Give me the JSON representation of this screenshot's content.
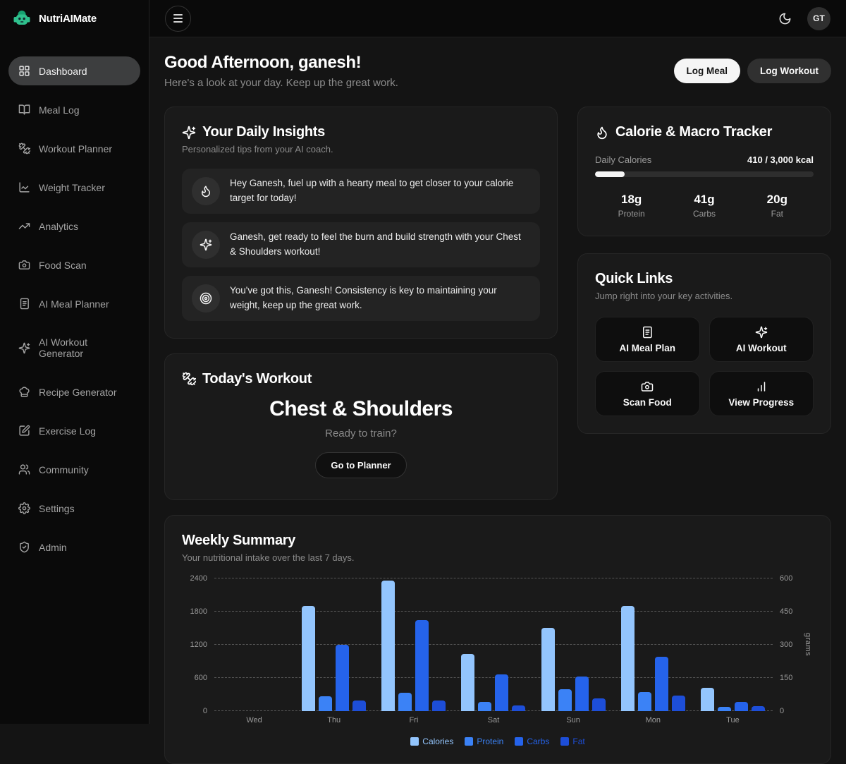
{
  "brand": {
    "name": "NutriAIMate"
  },
  "topbar": {
    "avatar_initials": "GT"
  },
  "sidebar": {
    "items": [
      {
        "label": "Dashboard",
        "active": true
      },
      {
        "label": "Meal Log"
      },
      {
        "label": "Workout Planner"
      },
      {
        "label": "Weight Tracker"
      },
      {
        "label": "Analytics"
      },
      {
        "label": "Food Scan"
      },
      {
        "label": "AI Meal Planner"
      },
      {
        "label": "AI Workout Generator"
      },
      {
        "label": "Recipe Generator"
      },
      {
        "label": "Exercise Log"
      },
      {
        "label": "Community"
      },
      {
        "label": "Settings"
      },
      {
        "label": "Admin"
      }
    ]
  },
  "header": {
    "greeting": "Good Afternoon, ganesh!",
    "subtitle": "Here's a look at your day. Keep up the great work.",
    "log_meal_label": "Log Meal",
    "log_workout_label": "Log Workout"
  },
  "insights": {
    "title": "Your Daily Insights",
    "subtitle": "Personalized tips from your AI coach.",
    "items": [
      {
        "icon": "flame-icon",
        "text": "Hey Ganesh, fuel up with a hearty meal to get closer to your calorie target for today!"
      },
      {
        "icon": "sparkles-icon",
        "text": "Ganesh, get ready to feel the burn and build strength with your Chest & Shoulders workout!"
      },
      {
        "icon": "target-icon",
        "text": "You've got this, Ganesh! Consistency is key to maintaining your weight, keep up the great work."
      }
    ]
  },
  "workout": {
    "title": "Today's Workout",
    "name": "Chest & Shoulders",
    "prompt": "Ready to train?",
    "button_label": "Go to Planner"
  },
  "tracker": {
    "title": "Calorie & Macro Tracker",
    "daily_calories_label": "Daily Calories",
    "daily_calories_value": "410 / 3,000 kcal",
    "progress_pct": 13.7,
    "macros": [
      {
        "value": "18g",
        "label": "Protein"
      },
      {
        "value": "41g",
        "label": "Carbs"
      },
      {
        "value": "20g",
        "label": "Fat"
      }
    ]
  },
  "quick_links": {
    "title": "Quick Links",
    "subtitle": "Jump right into your key activities.",
    "items": [
      {
        "icon": "notebook-icon",
        "label": "AI Meal Plan"
      },
      {
        "icon": "sparkles-icon",
        "label": "AI Workout"
      },
      {
        "icon": "camera-icon",
        "label": "Scan Food"
      },
      {
        "icon": "bar-chart-icon",
        "label": "View Progress"
      }
    ]
  },
  "weekly": {
    "title": "Weekly Summary",
    "subtitle": "Your nutritional intake over the last 7 days."
  },
  "chart_data": {
    "type": "bar",
    "categories": [
      "Wed",
      "Thu",
      "Fri",
      "Sat",
      "Sun",
      "Mon",
      "Tue"
    ],
    "series": [
      {
        "name": "Calories",
        "axis": "left",
        "color": "#93c5fd",
        "values": [
          0,
          1900,
          2350,
          1030,
          1500,
          1900,
          410
        ]
      },
      {
        "name": "Protein",
        "axis": "right",
        "color": "#3b82f6",
        "values": [
          0,
          65,
          80,
          40,
          98,
          85,
          18
        ]
      },
      {
        "name": "Carbs",
        "axis": "right",
        "color": "#2563eb",
        "values": [
          0,
          300,
          410,
          165,
          155,
          245,
          41
        ]
      },
      {
        "name": "Fat",
        "axis": "right",
        "color": "#1d4ed8",
        "values": [
          0,
          47,
          48,
          25,
          55,
          68,
          20
        ]
      }
    ],
    "left_axis": {
      "ticks": [
        0,
        600,
        1200,
        1800,
        2400
      ],
      "max": 2400
    },
    "right_axis": {
      "ticks": [
        0,
        150,
        300,
        450,
        600
      ],
      "max": 600,
      "label": "grams"
    },
    "grid": true,
    "legend_position": "bottom"
  }
}
